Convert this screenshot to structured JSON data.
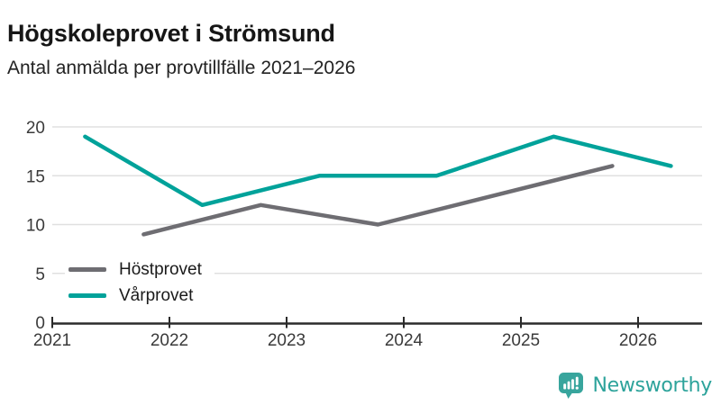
{
  "chart_data": {
    "type": "line",
    "title": "Högskoleprovet i Strömsund",
    "subtitle": "Antal anmälda per provtillfälle 2021–2026",
    "x_ticks": [
      2021,
      2022,
      2023,
      2024,
      2025,
      2026
    ],
    "y_ticks": [
      0,
      5,
      10,
      15,
      20
    ],
    "ylim": [
      0,
      20
    ],
    "xlim": [
      2021,
      2026.55
    ],
    "grid": "horizontal",
    "legend_position": "inside-bottom-left",
    "series": [
      {
        "name": "Höstprovet",
        "color": "#6e6d72",
        "x": [
          2021.78,
          2022.78,
          2023.78,
          2024.78,
          2025.78
        ],
        "values": [
          9,
          12,
          10,
          13,
          16
        ]
      },
      {
        "name": "Vårprovet",
        "color": "#00a29a",
        "x": [
          2021.28,
          2022.28,
          2023.28,
          2024.28,
          2025.28,
          2026.28
        ],
        "values": [
          19,
          12,
          15,
          15,
          19,
          16
        ]
      }
    ]
  },
  "branding": {
    "label": "Newsworthy",
    "color": "#2da39b",
    "icon": "bar-chart-speech-bubble-icon"
  }
}
